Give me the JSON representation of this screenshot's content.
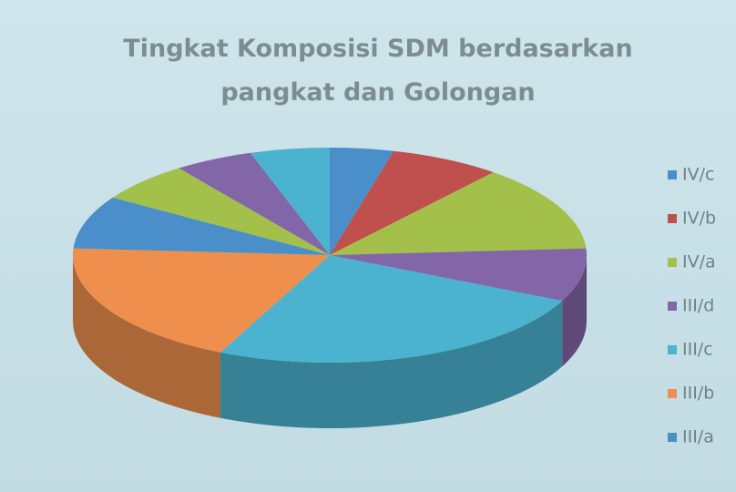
{
  "chart_data": {
    "type": "pie",
    "style": "3d",
    "title": "Tingkat Komposisi SDM berdasarkan pangkat dan Golongan",
    "categories": [
      "IV/c",
      "IV/b",
      "IV/a",
      "III/d",
      "III/c",
      "III/b",
      "III/a",
      null,
      null,
      null
    ],
    "values": [
      4,
      7,
      13,
      8,
      25,
      19,
      8,
      6,
      5,
      5
    ],
    "colors": [
      "#4a8fc9",
      "#c0504d",
      "#a3c04a",
      "#8366a8",
      "#4bb3cf",
      "#ee8f4e",
      "#4a8fc9",
      "#a3c04a",
      "#8366a8",
      "#4bb3cf"
    ],
    "legend": "right"
  }
}
